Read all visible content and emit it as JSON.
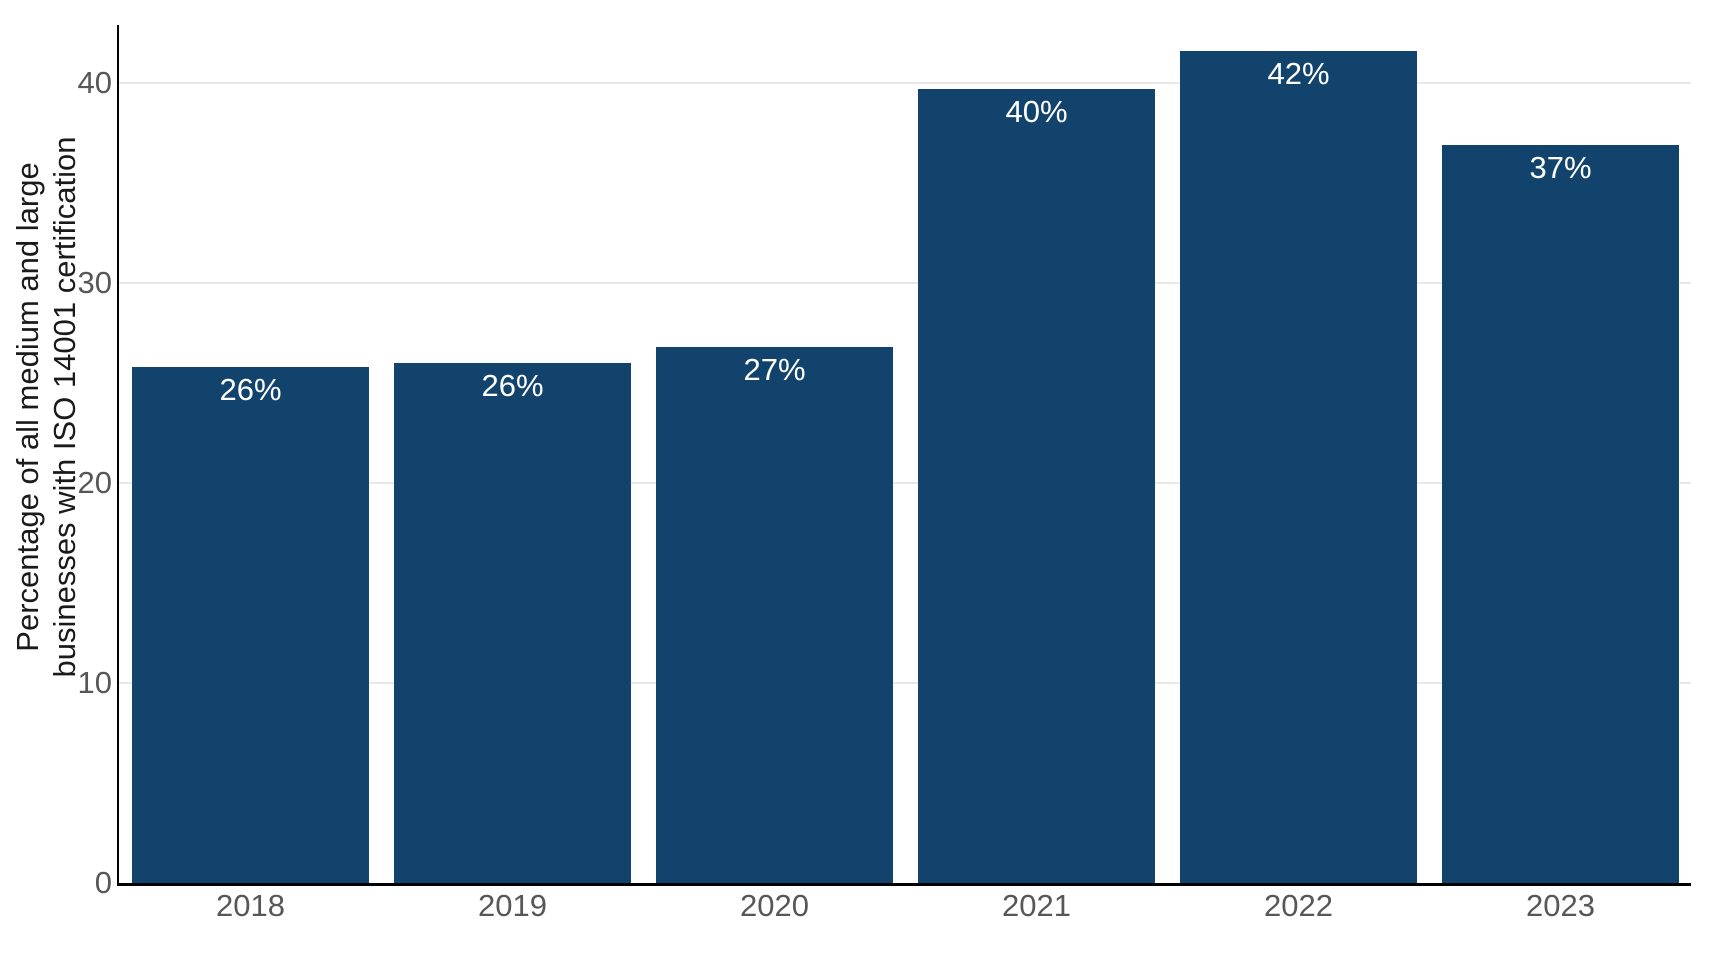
{
  "chart_data": {
    "type": "bar",
    "title": "",
    "xlabel": "",
    "ylabel_line1": "Percentage of all medium and large",
    "ylabel_line2": "businesses with ISO 14001 certification",
    "categories": [
      "2018",
      "2019",
      "2020",
      "2021",
      "2022",
      "2023"
    ],
    "values": [
      25.8,
      26.0,
      26.8,
      39.7,
      41.6,
      36.9
    ],
    "bar_labels": [
      "26%",
      "26%",
      "27%",
      "40%",
      "42%",
      "37%"
    ],
    "y_ticks": [
      0,
      10,
      20,
      30,
      40
    ],
    "ylim": [
      0,
      42.9
    ],
    "grid": "horizontal-only",
    "legend": "none",
    "colors": {
      "bar": "#12436d",
      "bar_label": "#ffffff",
      "tick_label": "#575757",
      "axis_title": "#1a1a1a",
      "gridline": "#e8e8e8",
      "spine": "#000000"
    }
  }
}
